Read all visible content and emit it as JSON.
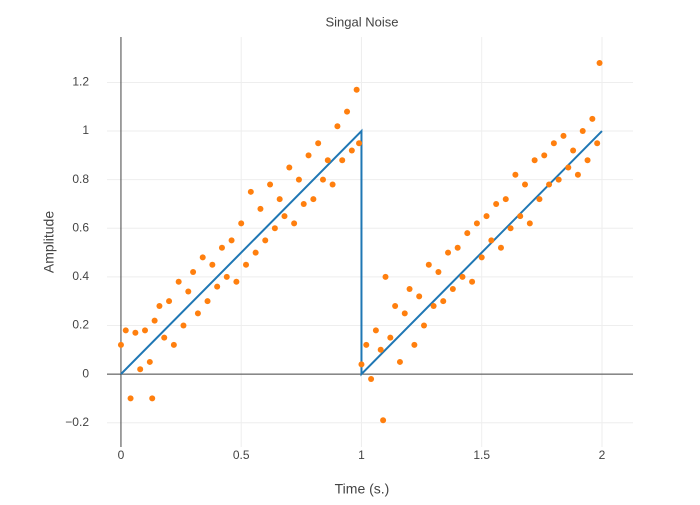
{
  "chart_data": {
    "type": "scatter",
    "title": "Singal Noise",
    "x_label": "Time (s.)",
    "y_label": "Amplitude",
    "xlim": [
      -0.058,
      2.129
    ],
    "ylim": [
      -0.3,
      1.387
    ],
    "xticks": [
      0,
      0.5,
      1,
      1.5,
      2
    ],
    "yticks": [
      {
        "value": -0.2,
        "label": "−0.2"
      },
      0,
      0.2,
      0.4,
      0.6,
      0.8,
      1,
      1.2
    ],
    "grid": true,
    "zeroline": true,
    "series": [
      {
        "mode": "lines",
        "color": "#1f77b4",
        "x": [
          0,
          1,
          1,
          2
        ],
        "values": [
          0,
          1,
          0,
          1
        ]
      },
      {
        "mode": "markers",
        "color": "#ff7f0e",
        "x": [
          0,
          0.02,
          0.04,
          0.06,
          0.08,
          0.1,
          0.12,
          0.13,
          0.14,
          0.16,
          0.18,
          0.2,
          0.22,
          0.24,
          0.26,
          0.28,
          0.3,
          0.32,
          0.34,
          0.36,
          0.38,
          0.4,
          0.42,
          0.44,
          0.46,
          0.48,
          0.5,
          0.52,
          0.54,
          0.56,
          0.58,
          0.6,
          0.62,
          0.64,
          0.66,
          0.68,
          0.7,
          0.72,
          0.74,
          0.76,
          0.78,
          0.8,
          0.82,
          0.84,
          0.86,
          0.88,
          0.9,
          0.92,
          0.94,
          0.96,
          0.98,
          0.99,
          1.0,
          1.02,
          1.04,
          1.06,
          1.08,
          1.09,
          1.1,
          1.12,
          1.14,
          1.16,
          1.18,
          1.2,
          1.22,
          1.24,
          1.26,
          1.28,
          1.3,
          1.32,
          1.34,
          1.36,
          1.38,
          1.4,
          1.42,
          1.44,
          1.46,
          1.48,
          1.5,
          1.52,
          1.54,
          1.56,
          1.58,
          1.6,
          1.62,
          1.64,
          1.66,
          1.68,
          1.7,
          1.72,
          1.74,
          1.76,
          1.78,
          1.8,
          1.82,
          1.84,
          1.86,
          1.88,
          1.9,
          1.92,
          1.94,
          1.96,
          1.98,
          1.99
        ],
        "values": [
          0.12,
          0.18,
          -0.1,
          0.17,
          0.02,
          0.18,
          0.05,
          -0.1,
          0.22,
          0.28,
          0.15,
          0.3,
          0.12,
          0.38,
          0.2,
          0.34,
          0.42,
          0.25,
          0.48,
          0.3,
          0.45,
          0.36,
          0.52,
          0.4,
          0.55,
          0.38,
          0.62,
          0.45,
          0.75,
          0.5,
          0.68,
          0.55,
          0.78,
          0.6,
          0.72,
          0.65,
          0.85,
          0.62,
          0.8,
          0.7,
          0.9,
          0.72,
          0.95,
          0.8,
          0.88,
          0.78,
          1.02,
          0.88,
          1.08,
          0.92,
          1.17,
          0.95,
          0.04,
          0.12,
          -0.02,
          0.18,
          0.1,
          -0.19,
          0.4,
          0.15,
          0.28,
          0.05,
          0.25,
          0.35,
          0.12,
          0.32,
          0.2,
          0.45,
          0.28,
          0.42,
          0.3,
          0.5,
          0.35,
          0.52,
          0.4,
          0.58,
          0.38,
          0.62,
          0.48,
          0.65,
          0.55,
          0.7,
          0.52,
          0.72,
          0.6,
          0.82,
          0.65,
          0.78,
          0.62,
          0.88,
          0.72,
          0.9,
          0.78,
          0.95,
          0.8,
          0.98,
          0.85,
          0.92,
          0.82,
          1.0,
          0.88,
          1.05,
          0.95,
          1.28
        ]
      }
    ]
  }
}
